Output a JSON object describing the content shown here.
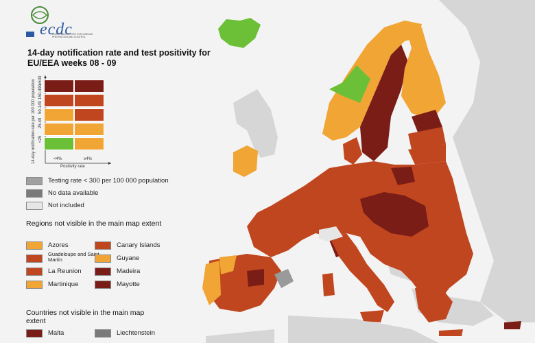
{
  "logo": {
    "name": "ecdc",
    "subtitle": "EUROPEAN CENTRE FOR DISEASE PREVENTION AND CONTROL"
  },
  "title": "14-day notification rate and test positivity for EU/EEA weeks 08 - 09",
  "matrix": {
    "y_axis_label": "14-day notification rate per 100 000 population",
    "x_axis_label": "Positivity rate",
    "rows": [
      "≥500",
      "150-499",
      "50-149",
      "25-49",
      "<25"
    ],
    "cols": [
      "<4%",
      "≥4%"
    ],
    "colors": [
      [
        "#7b1d17",
        "#7b1d17"
      ],
      [
        "#c0461f",
        "#c0461f"
      ],
      [
        "#f0a535",
        "#c0461f"
      ],
      [
        "#f0a535",
        "#f0a535"
      ],
      [
        "#6cc037",
        "#f0a535"
      ]
    ]
  },
  "status_legend": [
    {
      "label": "Testing rate < 300 per 100 000 population",
      "color": "#a0a0a0"
    },
    {
      "label": "No data available",
      "color": "#7a7a7a"
    },
    {
      "label": "Not included",
      "color": "#e6e6e6"
    }
  ],
  "regions_title": "Regions not visible in the main map extent",
  "regions": [
    {
      "label": "Azores",
      "color": "#f0a535"
    },
    {
      "label": "Canary Islands",
      "color": "#c0461f"
    },
    {
      "label": "Guadeloupe and Saint Martin",
      "color": "#c0461f"
    },
    {
      "label": "Guyane",
      "color": "#f0a535"
    },
    {
      "label": "La Reunion",
      "color": "#c0461f"
    },
    {
      "label": "Madeira",
      "color": "#7b1d17"
    },
    {
      "label": "Martinique",
      "color": "#f0a535"
    },
    {
      "label": "Mayotte",
      "color": "#7b1d17"
    }
  ],
  "countries_title": "Countries not visible in the main map extent",
  "countries": [
    {
      "label": "Malta",
      "color": "#7b1d17"
    },
    {
      "label": "Liechtenstein",
      "color": "#7a7a7a"
    }
  ],
  "map_colors": {
    "sea": "#f3f3f3",
    "non_eu": "#d6d6d6",
    "dark_red": "#7b1d17",
    "red": "#c0461f",
    "orange": "#f0a535",
    "green": "#6cc037",
    "grey": "#9a9a9a"
  }
}
